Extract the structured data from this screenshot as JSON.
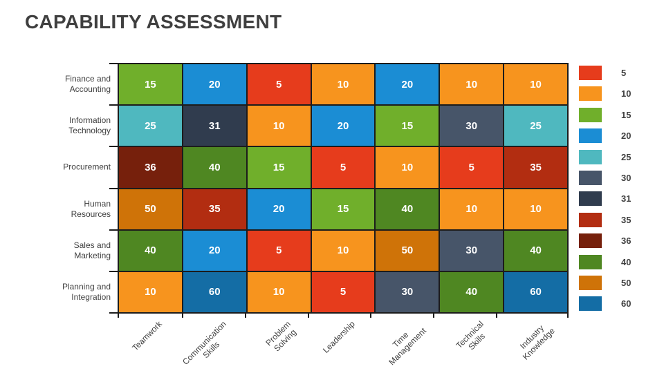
{
  "title": "CAPABILITY ASSESSMENT",
  "chart_data": {
    "type": "heatmap",
    "title": "CAPABILITY ASSESSMENT",
    "rows": [
      "Finance and\nAccounting",
      "Information\nTechnology",
      "Procurement",
      "Human\nResources",
      "Sales and\nMarketing",
      "Planning and\nIntegration"
    ],
    "columns": [
      "Teamwork",
      "Communication\nSkills",
      "Problem\nSolving",
      "Leadership",
      "Time\nManagement",
      "Technical\nSkills",
      "Industry\nKnowledge"
    ],
    "values": [
      [
        15,
        20,
        5,
        10,
        20,
        10,
        10
      ],
      [
        25,
        31,
        10,
        20,
        15,
        30,
        25
      ],
      [
        36,
        40,
        15,
        5,
        10,
        5,
        35
      ],
      [
        50,
        35,
        20,
        15,
        40,
        10,
        10
      ],
      [
        40,
        20,
        5,
        10,
        50,
        30,
        40
      ],
      [
        10,
        60,
        10,
        5,
        30,
        40,
        60
      ]
    ],
    "legend": [
      {
        "value": 5,
        "color": "#E63C1C"
      },
      {
        "value": 10,
        "color": "#F7941E"
      },
      {
        "value": 15,
        "color": "#70AF2B"
      },
      {
        "value": 20,
        "color": "#1B8DD4"
      },
      {
        "value": 25,
        "color": "#4FB8BF"
      },
      {
        "value": 30,
        "color": "#475569"
      },
      {
        "value": 31,
        "color": "#303C4E"
      },
      {
        "value": 35,
        "color": "#B22D11"
      },
      {
        "value": 36,
        "color": "#76200C"
      },
      {
        "value": 40,
        "color": "#4F8722"
      },
      {
        "value": 50,
        "color": "#CF7308"
      },
      {
        "value": 60,
        "color": "#146DA5"
      }
    ],
    "legend_position": "right",
    "grid": true,
    "cell_text_color": "#FFFFFF",
    "grid_line_color": "#1C1C1C",
    "label_color": "#404040",
    "title_color": "#3F3F3F"
  }
}
